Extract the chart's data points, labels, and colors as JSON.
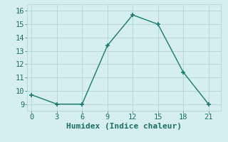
{
  "x": [
    0,
    3,
    6,
    9,
    12,
    15,
    18,
    21
  ],
  "y": [
    9.7,
    9.0,
    9.0,
    13.4,
    15.7,
    15.0,
    11.4,
    9.0
  ],
  "xlabel": "Humidex (Indice chaleur)",
  "ylim": [
    8.5,
    16.5
  ],
  "xlim": [
    -0.5,
    22.5
  ],
  "yticks": [
    9,
    10,
    11,
    12,
    13,
    14,
    15,
    16
  ],
  "xticks": [
    0,
    3,
    6,
    9,
    12,
    15,
    18,
    21
  ],
  "line_color": "#1a7a6e",
  "marker": "+",
  "bg_color": "#d4efed",
  "grid_color": "#b5d9d6",
  "font_color": "#1a6e64",
  "font_size": 7.5,
  "xlabel_fontsize": 8.0
}
